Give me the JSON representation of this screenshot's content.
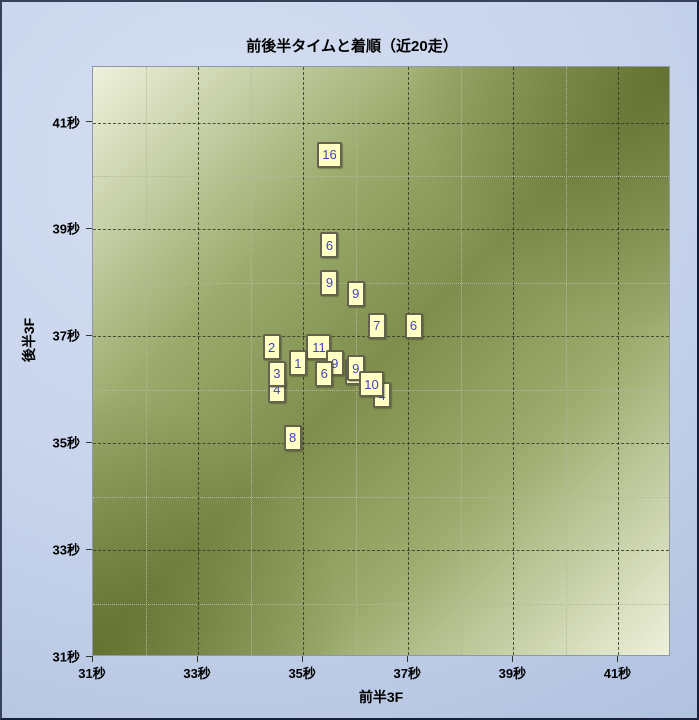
{
  "title": "前後半タイムと着順（近20走）",
  "chart_data": {
    "type": "scatter",
    "title": "前後半タイムと着順（近20走）",
    "xlabel": "前半3F",
    "ylabel": "後半3F",
    "unit_suffix": "秒",
    "xlim": [
      31,
      42
    ],
    "ylim": [
      31,
      42.04
    ],
    "grid": "on",
    "legend": "none",
    "x_ticks": [
      {
        "value": 31,
        "label": "31秒"
      },
      {
        "value": 33,
        "label": "33秒"
      },
      {
        "value": 35,
        "label": "35秒"
      },
      {
        "value": 37,
        "label": "37秒"
      },
      {
        "value": 39,
        "label": "39秒"
      },
      {
        "value": 41,
        "label": "41秒"
      }
    ],
    "y_ticks": [
      {
        "value": 31,
        "label": "31秒"
      },
      {
        "value": 33,
        "label": "33秒"
      },
      {
        "value": 35,
        "label": "35秒"
      },
      {
        "value": 37,
        "label": "37秒"
      },
      {
        "value": 39,
        "label": "39秒"
      },
      {
        "value": 41,
        "label": "41秒"
      }
    ],
    "x_major_gridlines": [
      33,
      35,
      37,
      39,
      41
    ],
    "x_minor_gridlines": [
      32,
      34,
      36,
      38,
      40
    ],
    "y_major_gridlines": [
      33,
      35,
      37,
      39,
      41
    ],
    "y_minor_gridlines": [
      32,
      34,
      36,
      38,
      40
    ],
    "points": [
      {
        "label": "16",
        "x": 35.5,
        "y": 40.4,
        "z": 1
      },
      {
        "label": "6",
        "x": 35.5,
        "y": 38.7,
        "z": 1
      },
      {
        "label": "9",
        "x": 35.5,
        "y": 38.0,
        "z": 1
      },
      {
        "label": "9",
        "x": 36.0,
        "y": 37.8,
        "z": 1
      },
      {
        "label": "7",
        "x": 36.4,
        "y": 37.2,
        "z": 1
      },
      {
        "label": "6",
        "x": 37.1,
        "y": 37.2,
        "z": 1
      },
      {
        "label": "2",
        "x": 34.4,
        "y": 36.8,
        "z": 1
      },
      {
        "label": "11",
        "x": 35.3,
        "y": 36.8,
        "z": 1
      },
      {
        "label": "1",
        "x": 34.9,
        "y": 36.5,
        "z": 2
      },
      {
        "label": "9",
        "x": 35.6,
        "y": 36.5,
        "z": 2
      },
      {
        "label": "6",
        "x": 35.4,
        "y": 36.3,
        "z": 3
      },
      {
        "label": "3",
        "x": 34.5,
        "y": 36.3,
        "z": 2
      },
      {
        "label": "4",
        "x": 34.5,
        "y": 36.0,
        "z": 1
      },
      {
        "label": "",
        "x": 35.97,
        "y": 36.33,
        "z": 1,
        "label_obscured": true
      },
      {
        "label": "9",
        "x": 36.0,
        "y": 36.4,
        "z": 2
      },
      {
        "label": "10",
        "x": 36.3,
        "y": 36.1,
        "z": 5
      },
      {
        "label": "4",
        "x": 36.5,
        "y": 35.9,
        "z": 4
      },
      {
        "label": "8",
        "x": 34.8,
        "y": 35.1,
        "z": 1
      }
    ],
    "colors": {
      "marker_fill": "#ffffc4",
      "marker_border": "#62624e",
      "marker_text": "#4343ba",
      "plot_bg_light": "#eef1dc",
      "plot_bg_dark": "#7f8e4c",
      "grid_major": "#323a24",
      "grid_minor": "#b3b99f",
      "outer_bg": "#c8d4ec",
      "frame_border": "#26324e"
    }
  }
}
